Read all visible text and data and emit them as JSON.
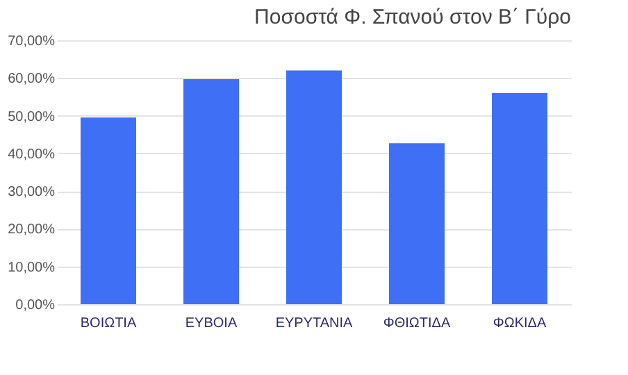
{
  "chart_data": {
    "type": "bar",
    "title": "Ποσοστά Φ. Σπανού στον Β΄ Γύρο",
    "categories": [
      "ΒΟΙΩΤΙΑ",
      "ΕΥΒΟΙΑ",
      "ΕΥΡΥΤΑΝΙΑ",
      "ΦΘΙΩΤΙΔΑ",
      "ΦΩΚΙΔΑ"
    ],
    "values": [
      49.5,
      59.7,
      62.0,
      42.7,
      56.0
    ],
    "color": "#3f6ff5",
    "ylim": [
      0,
      70
    ],
    "yticks": [
      {
        "value": 0,
        "label": "0,00%"
      },
      {
        "value": 10,
        "label": "10,00%"
      },
      {
        "value": 20,
        "label": "20,00%"
      },
      {
        "value": 30,
        "label": "30,00%"
      },
      {
        "value": 40,
        "label": "40,00%"
      },
      {
        "value": 50,
        "label": "50,00%"
      },
      {
        "value": 60,
        "label": "60,00%"
      },
      {
        "value": 70,
        "label": "70,00%"
      }
    ],
    "grid": "y"
  }
}
